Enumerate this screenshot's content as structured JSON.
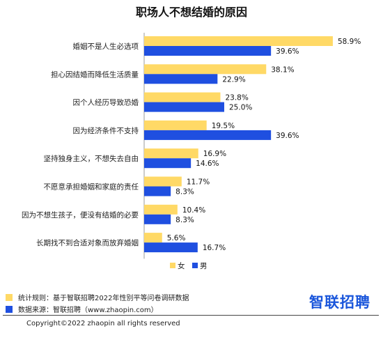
{
  "chart_data": {
    "type": "bar",
    "orientation": "horizontal",
    "title": "职场人不想结婚的原因",
    "categories": [
      "婚姻不是人生必选项",
      "担心因结婚而降低生活质量",
      "因个人经历导致恐婚",
      "因为经济条件不支持",
      "坚持独身主义，不想失去自由",
      "不愿意承担婚姻和家庭的责任",
      "因为不想生孩子，便没有结婚的必要",
      "长期找不到合适对象而放弃婚姻"
    ],
    "series": [
      {
        "name": "女",
        "color": "#ffd966",
        "values": [
          58.9,
          38.1,
          23.8,
          19.5,
          16.9,
          11.7,
          10.4,
          5.6
        ],
        "labels": [
          "58.9%",
          "38.1%",
          "23.8%",
          "19.5%",
          "16.9%",
          "11.7%",
          "10.4%",
          "5.6%"
        ]
      },
      {
        "name": "男",
        "color": "#1f4fe0",
        "values": [
          39.6,
          22.9,
          25.0,
          39.6,
          14.6,
          8.3,
          8.3,
          16.7
        ],
        "labels": [
          "39.6%",
          "22.9%",
          "25.0%",
          "39.6%",
          "14.6%",
          "8.3%",
          "8.3%",
          "16.7%"
        ]
      }
    ],
    "xlim": [
      0,
      60
    ],
    "legend": "bottom-right",
    "grid": false
  },
  "footer": {
    "note1": "统计规则：基于智联招聘2022年性别平等问卷调研数据",
    "note2": "数据来源：智联招聘（www.zhaopin.com）",
    "note1_color": "#ffd966",
    "note2_color": "#1f4fe0",
    "logo_text": "智联招聘",
    "copyright": "Copyright©2022 zhaopin all rights reserved"
  }
}
